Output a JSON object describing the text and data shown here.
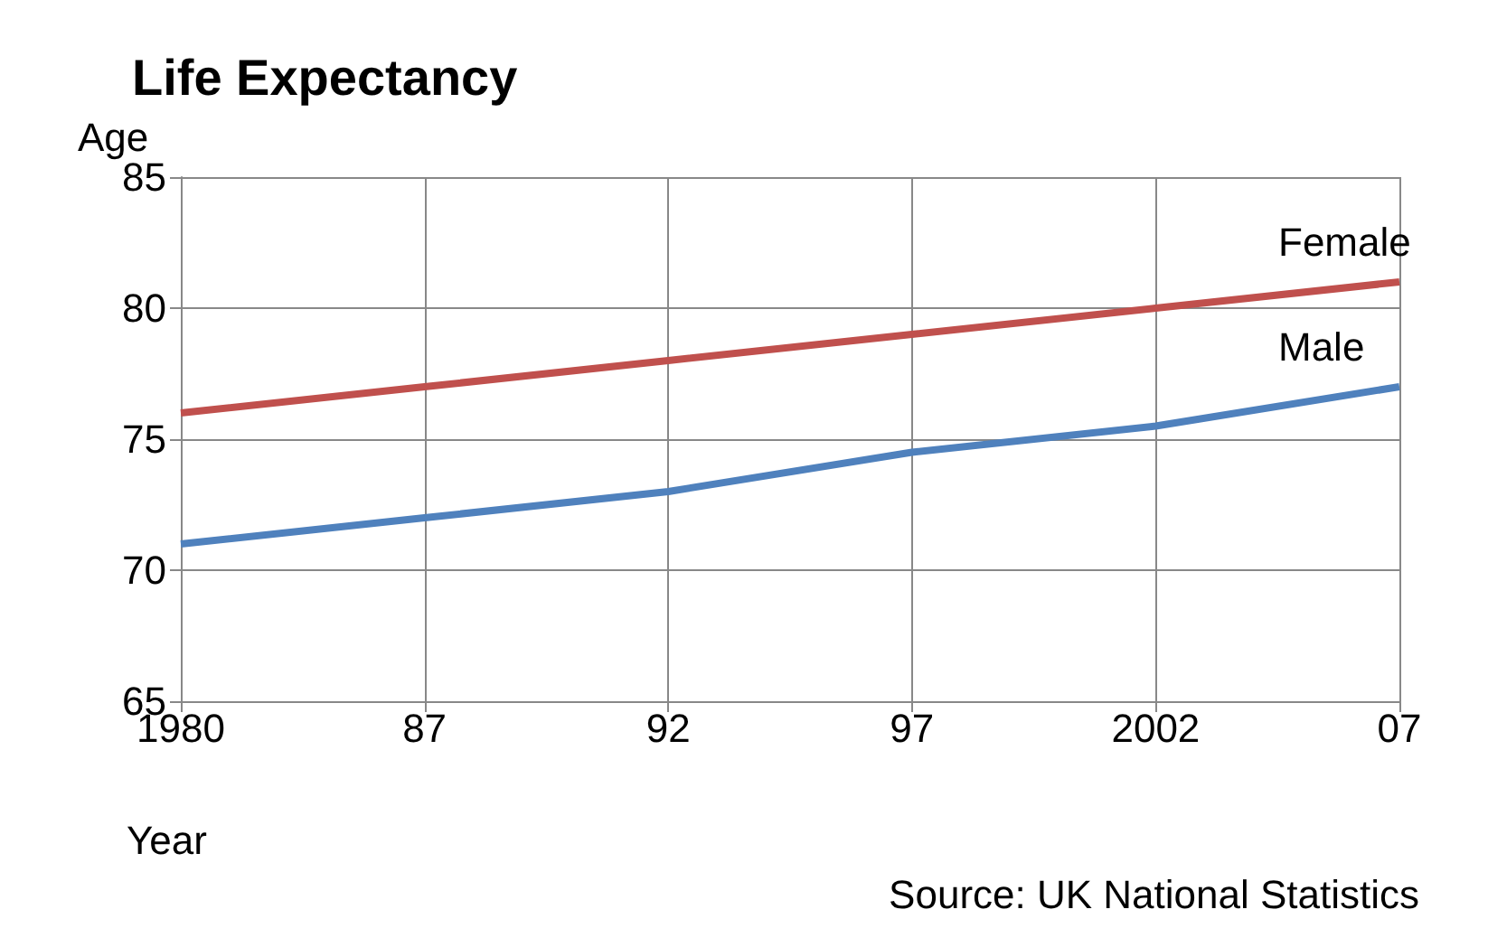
{
  "chart_data": {
    "type": "line",
    "title": "Life Expectancy",
    "xlabel": "Year",
    "ylabel": "Age",
    "annotations": [
      "Source: UK National Statistics"
    ],
    "categories": [
      "1980",
      "87",
      "92",
      "97",
      "2002",
      "07"
    ],
    "series": [
      {
        "name": "Female",
        "color": "#c0504d",
        "values": [
          76,
          77,
          78,
          79,
          80,
          81
        ]
      },
      {
        "name": "Male",
        "color": "#4f81bd",
        "values": [
          71,
          72,
          73,
          74.5,
          75.5,
          77
        ]
      }
    ],
    "ylim": [
      65,
      85
    ],
    "yticks": [
      65,
      70,
      75,
      80,
      85
    ],
    "grid": true,
    "legend": false,
    "marker": "none",
    "line_style": "solid"
  }
}
